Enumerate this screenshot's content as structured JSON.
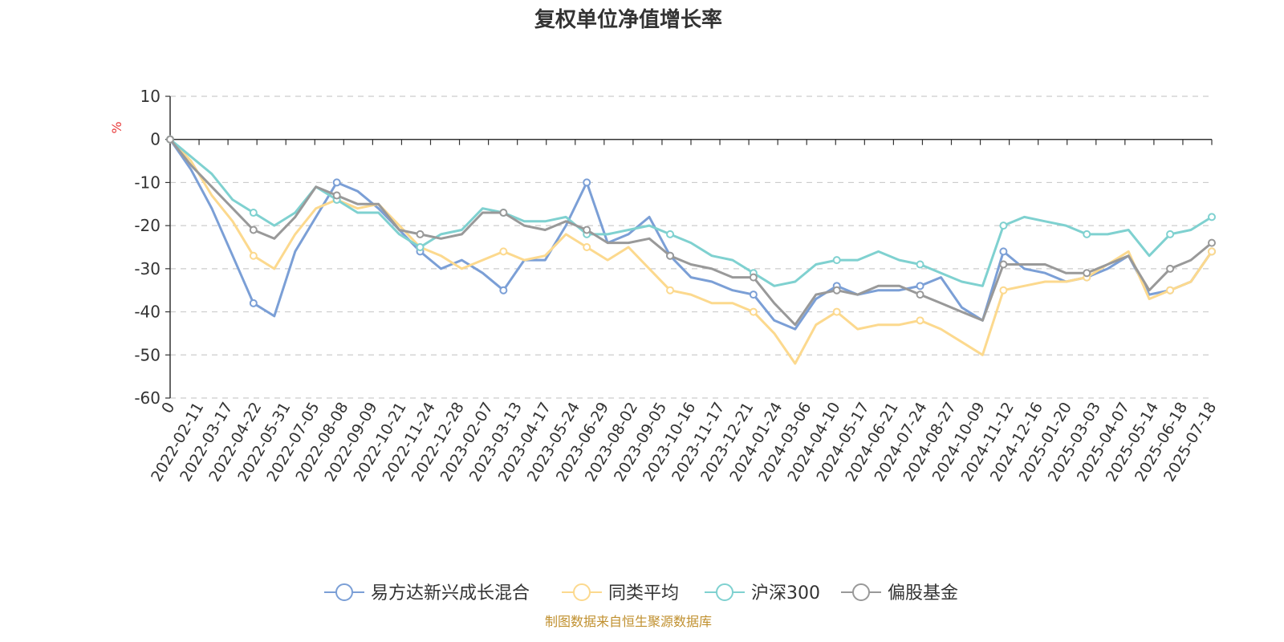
{
  "chart_data": {
    "type": "line",
    "title": "复权单位净值增长率",
    "ylabel": "%",
    "ylim": [
      -60,
      10
    ],
    "yticks": [
      10,
      0,
      -10,
      -20,
      -30,
      -40,
      -50,
      -60
    ],
    "x_tick_labels": [
      "0",
      "2022-02-11",
      "2022-03-17",
      "2022-04-22",
      "2022-05-31",
      "2022-07-05",
      "2022-08-08",
      "2022-09-09",
      "2022-10-21",
      "2022-11-24",
      "2022-12-28",
      "2023-02-07",
      "2023-03-13",
      "2023-04-17",
      "2023-05-24",
      "2023-06-29",
      "2023-08-02",
      "2023-09-05",
      "2023-10-16",
      "2023-11-17",
      "2023-12-21",
      "2024-01-24",
      "2024-03-06",
      "2024-04-10",
      "2024-05-17",
      "2024-06-21",
      "2024-07-24",
      "2024-08-27",
      "2024-10-09",
      "2024-11-12",
      "2024-12-16",
      "2025-01-20",
      "2025-03-03",
      "2025-04-07",
      "2025-05-14",
      "2025-06-18",
      "2025-07-18"
    ],
    "grid": true,
    "legend": "bottom",
    "source": "制图数据来自恒生聚源数据库",
    "series": [
      {
        "name": "易方达新兴成长混合",
        "color": "#7b9fd6",
        "values": [
          0,
          -7,
          -16,
          -27,
          -38,
          -41,
          -26,
          -18,
          -10,
          -12,
          -16,
          -21,
          -26,
          -30,
          -28,
          -31,
          -35,
          -28,
          -28,
          -20,
          -10,
          -24,
          -22,
          -18,
          -27,
          -32,
          -33,
          -35,
          -36,
          -42,
          -44,
          -37,
          -34,
          -36,
          -35,
          -35,
          -34,
          -32,
          -39,
          -42,
          -26,
          -30,
          -31,
          -33,
          -32,
          -30,
          -27,
          -36,
          -35,
          -33,
          -26
        ]
      },
      {
        "name": "同类平均",
        "color": "#fcd98e",
        "values": [
          0,
          -5,
          -13,
          -19,
          -27,
          -30,
          -22,
          -16,
          -14,
          -16,
          -15,
          -20,
          -25,
          -27,
          -30,
          -28,
          -26,
          -28,
          -27,
          -22,
          -25,
          -28,
          -25,
          -30,
          -35,
          -36,
          -38,
          -38,
          -40,
          -45,
          -52,
          -43,
          -40,
          -44,
          -43,
          -43,
          -42,
          -44,
          -47,
          -50,
          -35,
          -34,
          -33,
          -33,
          -32,
          -29,
          -26,
          -37,
          -35,
          -33,
          -26
        ]
      },
      {
        "name": "沪深300",
        "color": "#7fd1d0",
        "values": [
          0,
          -4,
          -8,
          -14,
          -17,
          -20,
          -17,
          -11,
          -14,
          -17,
          -17,
          -22,
          -25,
          -22,
          -21,
          -16,
          -17,
          -19,
          -19,
          -18,
          -22,
          -22,
          -21,
          -20,
          -22,
          -24,
          -27,
          -28,
          -31,
          -34,
          -33,
          -29,
          -28,
          -28,
          -26,
          -28,
          -29,
          -31,
          -33,
          -34,
          -20,
          -18,
          -19,
          -20,
          -22,
          -22,
          -21,
          -27,
          -22,
          -21,
          -18
        ]
      },
      {
        "name": "偏股基金",
        "color": "#999999",
        "values": [
          0,
          -6,
          -11,
          -16,
          -21,
          -23,
          -18,
          -11,
          -13,
          -15,
          -15,
          -21,
          -22,
          -23,
          -22,
          -17,
          -17,
          -20,
          -21,
          -19,
          -21,
          -24,
          -24,
          -23,
          -27,
          -29,
          -30,
          -32,
          -32,
          -38,
          -43,
          -36,
          -35,
          -36,
          -34,
          -34,
          -36,
          -38,
          -40,
          -42,
          -29,
          -29,
          -29,
          -31,
          -31,
          -29,
          -27,
          -35,
          -30,
          -28,
          -24
        ]
      }
    ]
  }
}
